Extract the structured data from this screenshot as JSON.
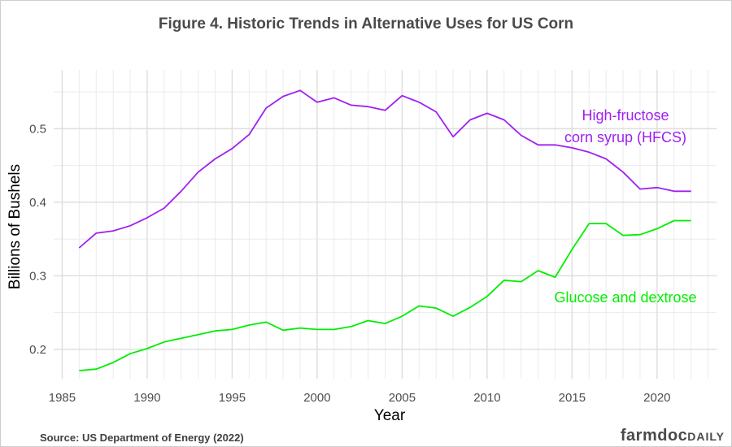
{
  "chart_data": {
    "type": "line",
    "title": "Figure 4. Historic Trends in Alternative Uses for US Corn",
    "xlabel": "Year",
    "ylabel": "Billions of Bushels",
    "xlim": [
      1984.5,
      2023.5
    ],
    "ylim": [
      0.16,
      0.58
    ],
    "xticks": [
      1985,
      1990,
      1995,
      2000,
      2005,
      2010,
      2015,
      2020
    ],
    "yticks": [
      0.2,
      0.3,
      0.4,
      0.5
    ],
    "grid": true,
    "legend": "direct labels",
    "x": [
      1986,
      1987,
      1988,
      1989,
      1990,
      1991,
      1992,
      1993,
      1994,
      1995,
      1996,
      1997,
      1998,
      1999,
      2000,
      2001,
      2002,
      2003,
      2004,
      2005,
      2006,
      2007,
      2008,
      2009,
      2010,
      2011,
      2012,
      2013,
      2014,
      2015,
      2016,
      2017,
      2018,
      2019,
      2020,
      2021,
      2022
    ],
    "series": [
      {
        "name": "High-fructose corn syrup (HFCS)",
        "label_lines": [
          "High-fructose",
          "corn syrup (HFCS)"
        ],
        "color": "#a020f0",
        "values": [
          0.338,
          0.358,
          0.361,
          0.368,
          0.379,
          0.392,
          0.415,
          0.441,
          0.459,
          0.473,
          0.492,
          0.528,
          0.544,
          0.552,
          0.536,
          0.542,
          0.532,
          0.53,
          0.525,
          0.545,
          0.536,
          0.523,
          0.489,
          0.512,
          0.521,
          0.512,
          0.491,
          0.478,
          0.478,
          0.474,
          0.468,
          0.459,
          0.441,
          0.418,
          0.42,
          0.415,
          0.415
        ]
      },
      {
        "name": "Glucose and dextrose",
        "label_lines": [
          "Glucose and dextrose"
        ],
        "color": "#00ee00",
        "values": [
          0.171,
          0.173,
          0.182,
          0.194,
          0.201,
          0.21,
          0.215,
          0.22,
          0.225,
          0.227,
          0.233,
          0.237,
          0.226,
          0.229,
          0.227,
          0.227,
          0.231,
          0.239,
          0.235,
          0.245,
          0.259,
          0.256,
          0.245,
          0.257,
          0.272,
          0.294,
          0.292,
          0.307,
          0.298,
          0.336,
          0.371,
          0.371,
          0.355,
          0.356,
          0.364,
          0.375,
          0.375
        ]
      }
    ]
  },
  "footer": {
    "source": "Source: US Department of Energy (2022)",
    "logo_main": "farmdoc",
    "logo_sub": "DAILY"
  }
}
